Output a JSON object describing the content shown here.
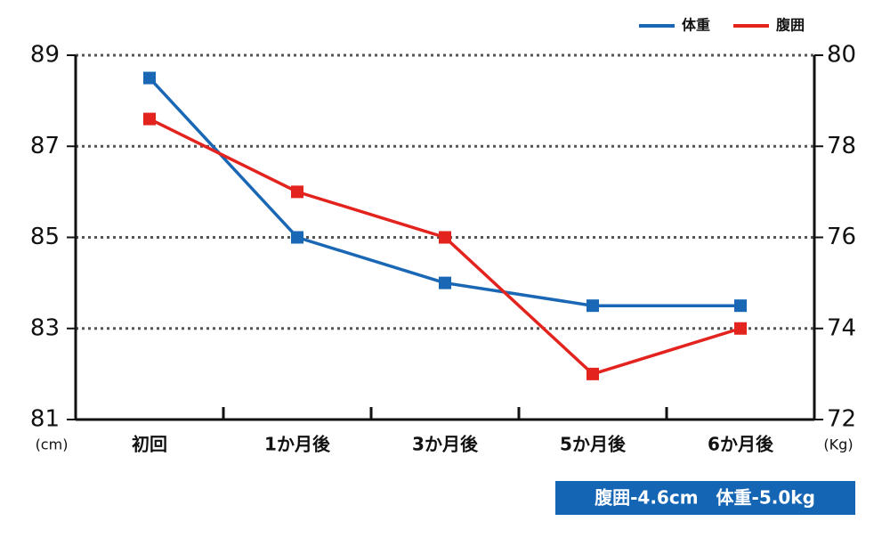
{
  "chart_data": {
    "type": "line",
    "categories": [
      "初回",
      "1か月後",
      "3か月後",
      "5か月後",
      "6か月後"
    ],
    "series": [
      {
        "name": "体重",
        "color": "#1a68b5",
        "axis": "y2",
        "values": [
          79.5,
          76,
          75,
          74.5,
          74.5
        ]
      },
      {
        "name": "腹囲",
        "color": "#e3231e",
        "values": [
          87.6,
          86,
          85,
          82,
          83
        ]
      }
    ],
    "ylim": [
      81,
      89
    ],
    "yticks": [
      81,
      83,
      85,
      87,
      89
    ],
    "ylabel": "(cm)",
    "y2lim": [
      72,
      80
    ],
    "y2ticks": [
      72,
      74,
      76,
      78,
      80
    ],
    "y2label": "(Kg)",
    "grid": true,
    "legend": "top-right",
    "annotation": "腹囲-4.6cm　体重-5.0kg"
  }
}
